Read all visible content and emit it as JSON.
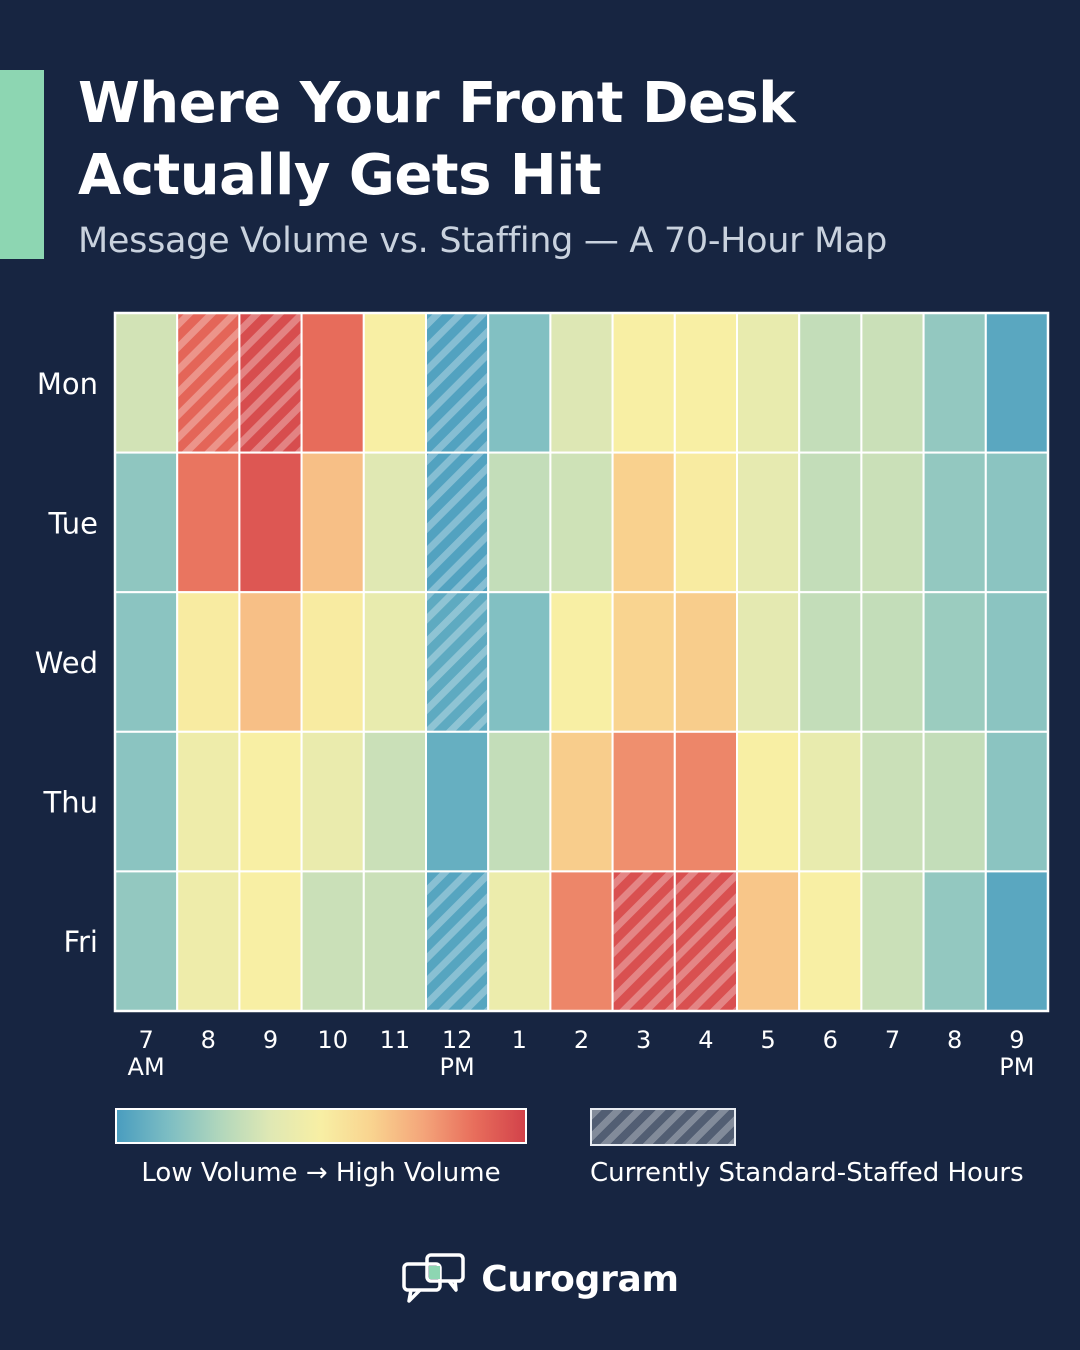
{
  "colors": {
    "background": "#172541",
    "accent": "#8dd6b2",
    "scale_low": "#4a9dbf",
    "scale_mid": "#f8efa4",
    "scale_high": "#d2424a"
  },
  "header": {
    "title": "Where Your Front Desk Actually Gets Hit",
    "subtitle": "Message Volume vs. Staffing — A 70-Hour Map"
  },
  "chart_data": {
    "type": "heatmap",
    "title": "Where Your Front Desk Actually Gets Hit",
    "subtitle": "Message Volume vs. Staffing — A 70-Hour Map",
    "rows": [
      "Mon",
      "Tue",
      "Wed",
      "Thu",
      "Fri"
    ],
    "columns": [
      {
        "hour": "7",
        "period": "AM"
      },
      {
        "hour": "8",
        "period": ""
      },
      {
        "hour": "9",
        "period": ""
      },
      {
        "hour": "10",
        "period": ""
      },
      {
        "hour": "11",
        "period": ""
      },
      {
        "hour": "12",
        "period": "PM"
      },
      {
        "hour": "1",
        "period": ""
      },
      {
        "hour": "2",
        "period": ""
      },
      {
        "hour": "3",
        "period": ""
      },
      {
        "hour": "4",
        "period": ""
      },
      {
        "hour": "5",
        "period": ""
      },
      {
        "hour": "6",
        "period": ""
      },
      {
        "hour": "7",
        "period": ""
      },
      {
        "hour": "8",
        "period": ""
      },
      {
        "hour": "9",
        "period": "PM"
      }
    ],
    "values": [
      [
        0.34,
        0.9,
        0.97,
        0.88,
        0.5,
        0.02,
        0.14,
        0.37,
        0.5,
        0.5,
        0.42,
        0.3,
        0.32,
        0.18,
        0.04
      ],
      [
        0.17,
        0.86,
        0.94,
        0.68,
        0.38,
        0.02,
        0.3,
        0.33,
        0.63,
        0.52,
        0.41,
        0.3,
        0.32,
        0.18,
        0.16
      ],
      [
        0.16,
        0.52,
        0.68,
        0.52,
        0.42,
        0.05,
        0.14,
        0.5,
        0.62,
        0.64,
        0.4,
        0.3,
        0.3,
        0.2,
        0.16
      ],
      [
        0.16,
        0.45,
        0.5,
        0.43,
        0.32,
        0.07,
        0.3,
        0.64,
        0.8,
        0.82,
        0.5,
        0.42,
        0.32,
        0.3,
        0.16
      ],
      [
        0.18,
        0.45,
        0.5,
        0.32,
        0.32,
        0.03,
        0.44,
        0.82,
        0.96,
        0.96,
        0.66,
        0.5,
        0.32,
        0.18,
        0.04
      ]
    ],
    "staffed": [
      [
        false,
        true,
        true,
        false,
        false,
        true,
        false,
        false,
        false,
        false,
        false,
        false,
        false,
        false,
        false
      ],
      [
        false,
        false,
        false,
        false,
        false,
        true,
        false,
        false,
        false,
        false,
        false,
        false,
        false,
        false,
        false
      ],
      [
        false,
        false,
        false,
        false,
        false,
        true,
        false,
        false,
        false,
        false,
        false,
        false,
        false,
        false,
        false
      ],
      [
        false,
        false,
        false,
        false,
        false,
        false,
        false,
        false,
        false,
        false,
        false,
        false,
        false,
        false,
        false
      ],
      [
        false,
        false,
        false,
        false,
        false,
        true,
        false,
        false,
        true,
        true,
        false,
        false,
        false,
        false,
        false
      ]
    ],
    "color_scale": [
      "#4a9dbf",
      "#7cbdc3",
      "#b0d6bc",
      "#dfe8b4",
      "#f8efa4",
      "#f9d38f",
      "#f4a57a",
      "#e86e5c",
      "#d2424a"
    ],
    "legend": {
      "gradient_label": "Low Volume → High Volume",
      "hatch_label": "Currently Standard-Staffed Hours",
      "placement": "bottom"
    }
  },
  "brand": {
    "name": "Curogram",
    "icon": "chat-bubbles-icon"
  }
}
